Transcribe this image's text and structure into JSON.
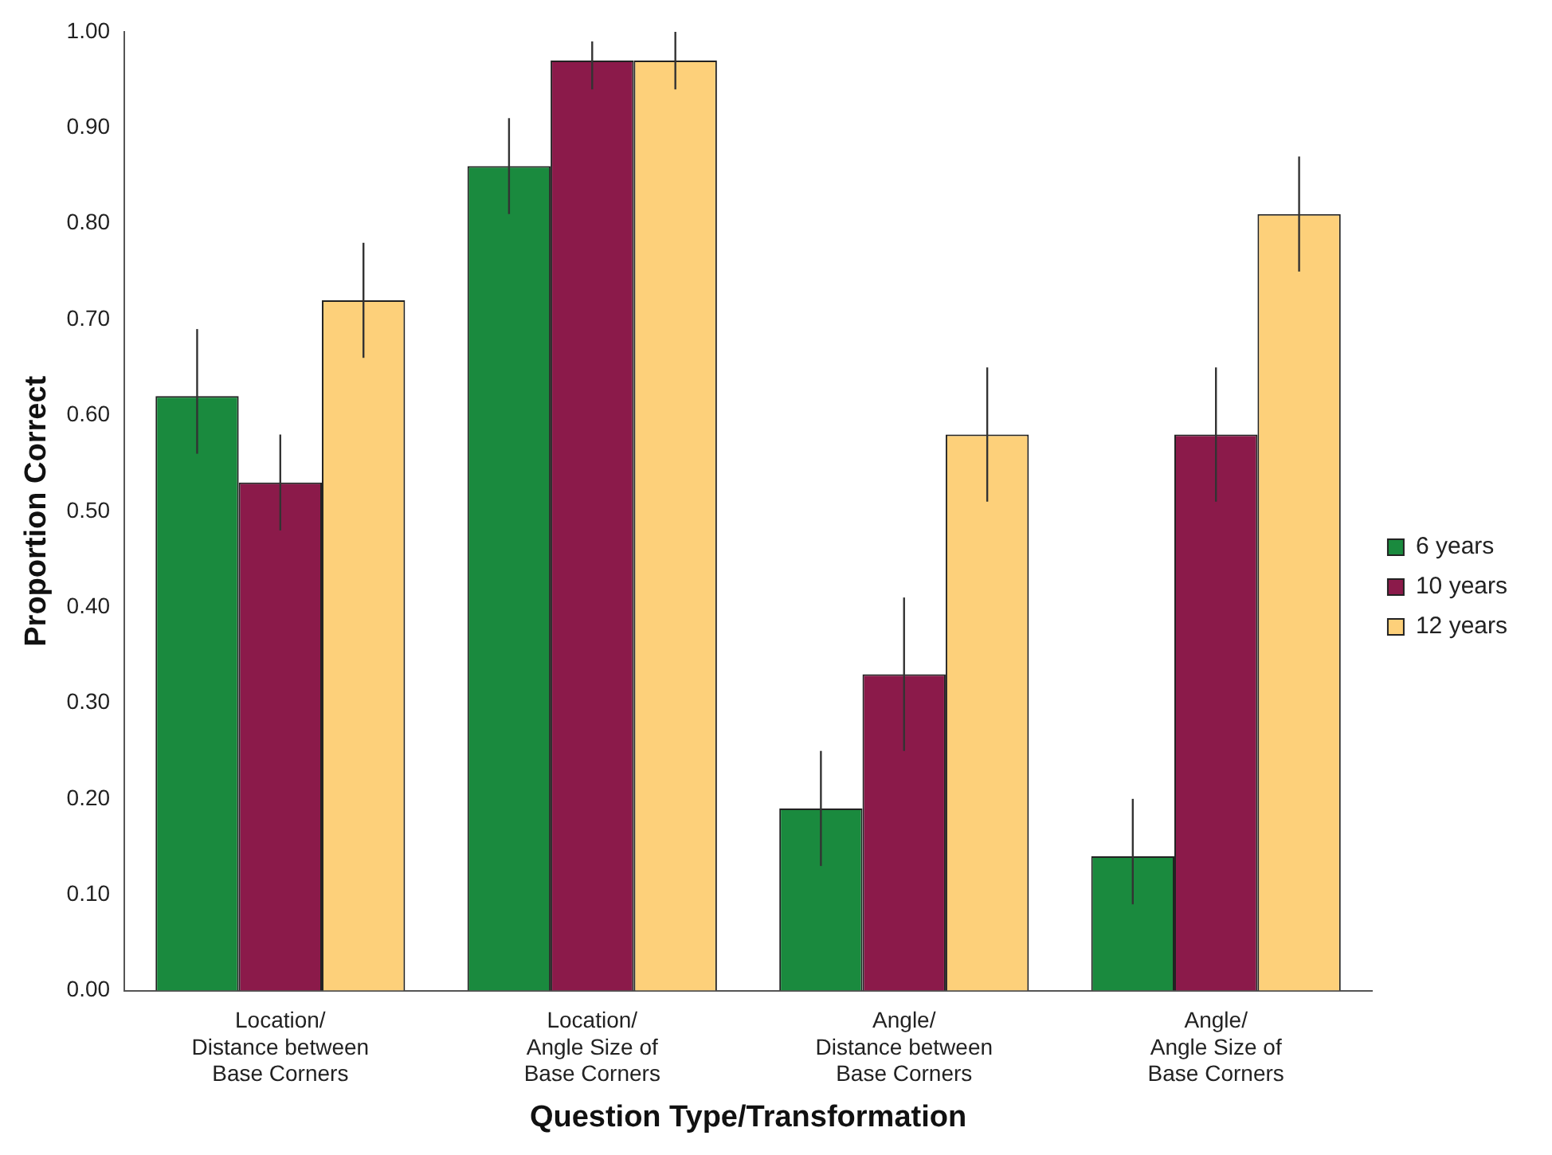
{
  "chart_data": {
    "type": "bar",
    "xlabel": "Question Type/Transformation",
    "ylabel": "Proportion Correct",
    "categories": [
      "Location/\nDistance between\nBase Corners",
      "Location/\nAngle Size of\nBase Corners",
      "Angle/\nDistance between\nBase Corners",
      "Angle/\nAngle Size of\nBase Corners"
    ],
    "series": [
      {
        "name": "6 years",
        "color": "#1a8a3e",
        "values": [
          0.62,
          0.86,
          0.19,
          0.14
        ],
        "errors": [
          [
            0.56,
            0.69
          ],
          [
            0.81,
            0.91
          ],
          [
            0.13,
            0.25
          ],
          [
            0.09,
            0.2
          ]
        ]
      },
      {
        "name": "10 years",
        "color": "#8b1a4a",
        "values": [
          0.53,
          0.97,
          0.33,
          0.58
        ],
        "errors": [
          [
            0.48,
            0.58
          ],
          [
            0.94,
            0.99
          ],
          [
            0.25,
            0.41
          ],
          [
            0.51,
            0.65
          ]
        ]
      },
      {
        "name": "12 years",
        "color": "#fdd07a",
        "values": [
          0.72,
          0.97,
          0.58,
          0.81
        ],
        "errors": [
          [
            0.66,
            0.78
          ],
          [
            0.94,
            1.0
          ],
          [
            0.51,
            0.65
          ],
          [
            0.75,
            0.87
          ]
        ]
      }
    ],
    "ylim": [
      0,
      1
    ],
    "yticks": [
      {
        "value": 0,
        "label": "0.00"
      },
      {
        "value": 0.1,
        "label": "0.10"
      },
      {
        "value": 0.2,
        "label": "0.20"
      },
      {
        "value": 0.3,
        "label": "0.30"
      },
      {
        "value": 0.4,
        "label": "0.40"
      },
      {
        "value": 0.5,
        "label": "0.50"
      },
      {
        "value": 0.6,
        "label": "0.60"
      },
      {
        "value": 0.7,
        "label": "0.70"
      },
      {
        "value": 0.8,
        "label": "0.80"
      },
      {
        "value": 0.9,
        "label": "0.90"
      },
      {
        "value": 1,
        "label": "1.00"
      }
    ],
    "grid": false,
    "legend": "right"
  }
}
